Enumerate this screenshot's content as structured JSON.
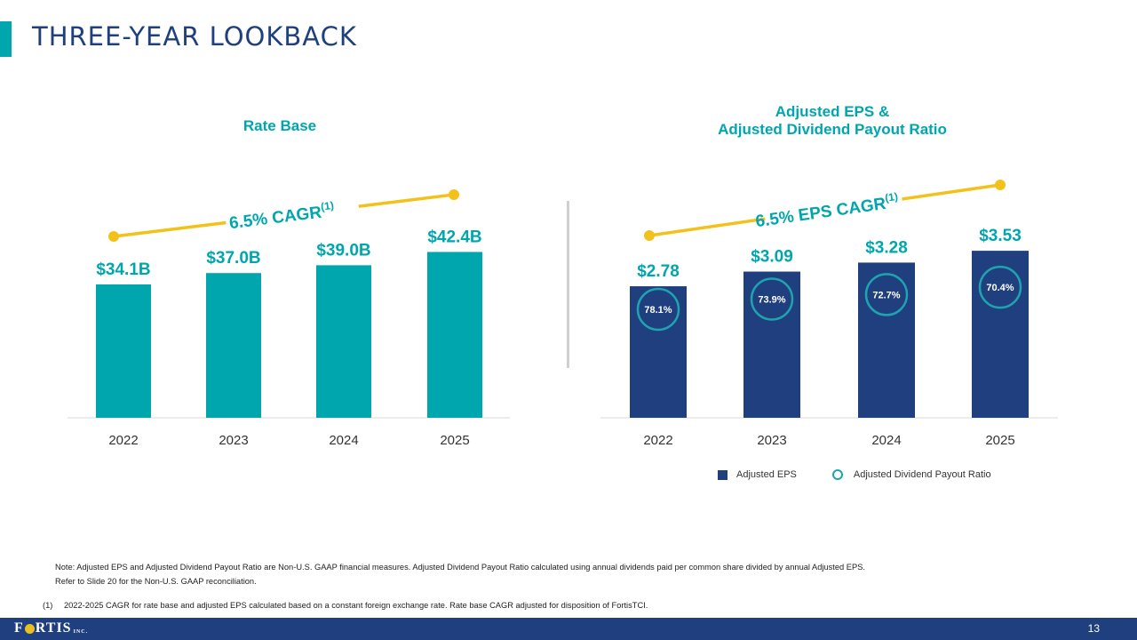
{
  "page": {
    "title": "THREE-YEAR LOOKBACK",
    "page_number": "13"
  },
  "chart_data": [
    {
      "type": "bar",
      "title": "Rate Base",
      "categories": [
        "2022",
        "2023",
        "2024",
        "2025"
      ],
      "values": [
        34.1,
        37.0,
        39.0,
        42.4
      ],
      "labels": [
        "$34.1B",
        "$37.0B",
        "$39.0B",
        "$42.4B"
      ],
      "color": "#00a6ad",
      "ylim": [
        0,
        45
      ],
      "cagr_label": "6.5% CAGR",
      "cagr_superscript": "(1)"
    },
    {
      "type": "bar",
      "title_line1": "Adjusted EPS &",
      "title_line2": "Adjusted Dividend Payout Ratio",
      "categories": [
        "2022",
        "2023",
        "2024",
        "2025"
      ],
      "values": [
        2.78,
        3.09,
        3.28,
        3.53
      ],
      "labels": [
        "$2.78",
        "$3.09",
        "$3.28",
        "$3.53"
      ],
      "payout_ratio": [
        78.1,
        73.9,
        72.7,
        70.4
      ],
      "payout_labels": [
        "78.1%",
        "73.9%",
        "72.7%",
        "70.4%"
      ],
      "color": "#1f3f7f",
      "ring_color": "#1fa3b0",
      "ylim": [
        0,
        3.72
      ],
      "cagr_label": "6.5% EPS CAGR",
      "cagr_superscript": "(1)",
      "legend": [
        "Adjusted EPS",
        "Adjusted Dividend Payout Ratio"
      ]
    }
  ],
  "notes": {
    "line1": "Note: Adjusted EPS and Adjusted Dividend Payout Ratio are Non-U.S. GAAP financial measures. Adjusted Dividend Payout Ratio calculated using annual dividends paid per common share divided by annual Adjusted EPS.",
    "line2": "Refer to Slide 20 for the Non-U.S. GAAP reconciliation.",
    "footnote_marker": "(1)",
    "footnote": "2022-2025 CAGR for rate base and adjusted EPS calculated based on a constant foreign exchange rate. Rate base CAGR adjusted for disposition of FortisTCI."
  },
  "footer": {
    "logo_text_a": "F",
    "logo_text_b": "RTIS",
    "logo_suffix": "INC."
  },
  "colors": {
    "accent_teal": "#00a6ad",
    "navy": "#1f3f7f",
    "cagr_yellow": "#f2c21b"
  }
}
